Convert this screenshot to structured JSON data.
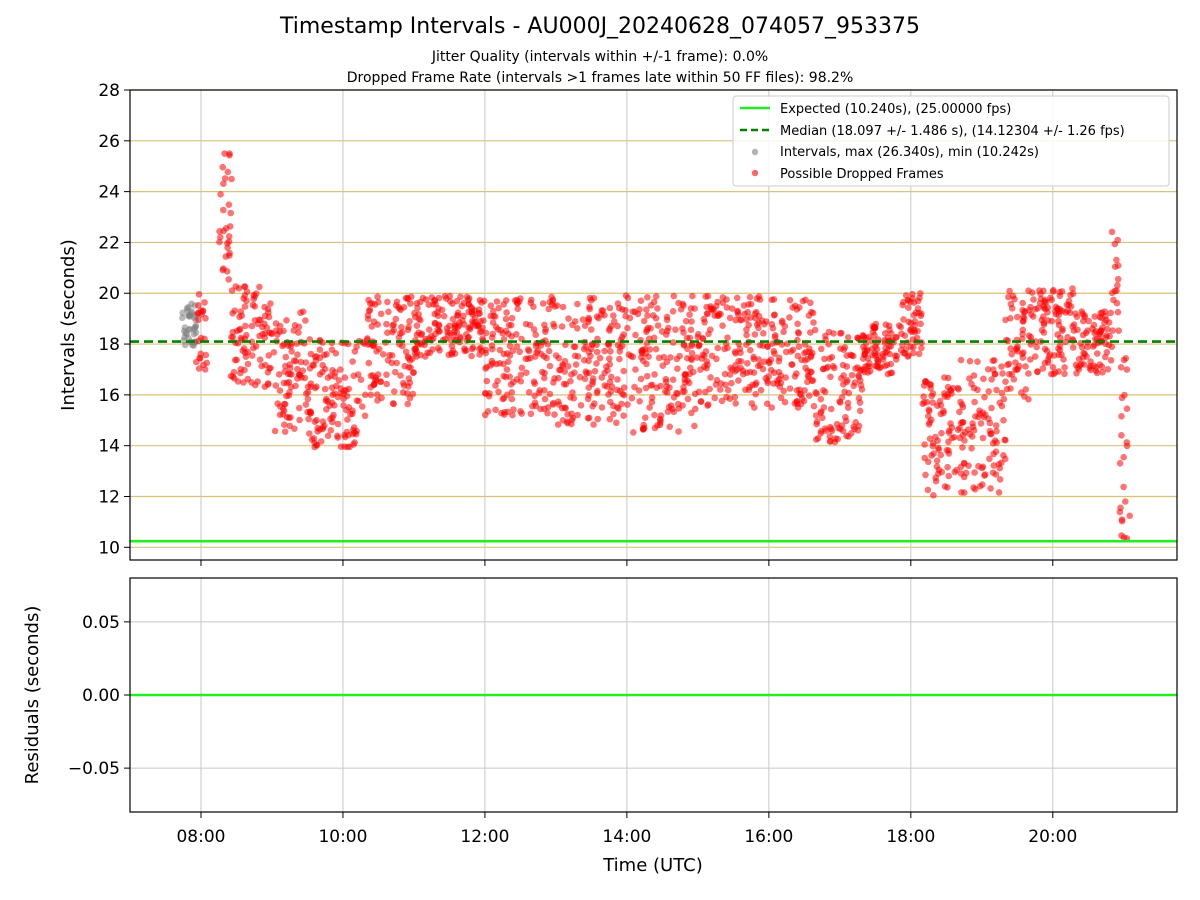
{
  "title": "Timestamp Intervals - AU000J_20240628_074057_953375",
  "subtitle_lines": [
    "Jitter Quality (intervals within +/-1 frame): 0.0%",
    "Dropped Frame Rate (intervals >1 frames late within 50 FF files): 98.2%"
  ],
  "colors": {
    "expected": "#22ee22",
    "median": "#008000",
    "intervals": "#808080",
    "dropped": "#ff0000",
    "hgrid_top": "#d9c27a",
    "grid": "#c8c8c8"
  },
  "chart_data": [
    {
      "type": "scatter",
      "ylabel": "Intervals (seconds)",
      "xlabel": "",
      "xlim": [
        "07:00",
        "21:45"
      ],
      "ylim": [
        9.5,
        28
      ],
      "yticks": [
        10,
        12,
        14,
        16,
        18,
        20,
        22,
        24,
        26,
        28
      ],
      "xticks": [
        "08:00",
        "10:00",
        "12:00",
        "14:00",
        "16:00",
        "18:00",
        "20:00"
      ],
      "legend_position": "top-right",
      "legend": [
        "Expected (10.240s), (25.00000 fps)",
        "Median (18.097 +/- 1.486 s), (14.12304 +/- 1.26 fps)",
        "Intervals, max (26.340s), min (10.242s)",
        "Possible Dropped Frames"
      ],
      "lines": [
        {
          "name": "Expected (10.240s), (25.00000 fps)",
          "y": 10.24,
          "style": "solid",
          "color": "#22ee22"
        },
        {
          "name": "Median (18.097 +/- 1.486 s), (14.12304 +/- 1.26 fps)",
          "y": 18.097,
          "style": "dashed",
          "color": "#008000"
        }
      ],
      "series": [
        {
          "name": "Intervals, max (26.340s), min (10.242s)",
          "color": "#808080",
          "segments": [
            {
              "x_start": "07:41",
              "x_end": "07:56",
              "y_min": 17.9,
              "y_max": 19.6
            }
          ]
        },
        {
          "name": "Possible Dropped Frames",
          "color": "#ff0000",
          "segments": [
            {
              "x_start": "07:56",
              "x_end": "08:05",
              "y_min": 17.0,
              "y_max": 20.0
            },
            {
              "x_start": "08:15",
              "x_end": "08:26",
              "y_min": 20.5,
              "y_max": 26.3
            },
            {
              "x_start": "08:25",
              "x_end": "09:00",
              "y_min": 16.3,
              "y_max": 20.3
            },
            {
              "x_start": "09:00",
              "x_end": "09:30",
              "y_min": 14.5,
              "y_max": 19.3
            },
            {
              "x_start": "09:30",
              "x_end": "10:20",
              "y_min": 13.9,
              "y_max": 18.2
            },
            {
              "x_start": "10:20",
              "x_end": "11:00",
              "y_min": 15.6,
              "y_max": 19.9
            },
            {
              "x_start": "11:00",
              "x_end": "12:00",
              "y_min": 17.5,
              "y_max": 19.9
            },
            {
              "x_start": "12:00",
              "x_end": "13:00",
              "y_min": 15.2,
              "y_max": 19.9
            },
            {
              "x_start": "13:00",
              "x_end": "14:00",
              "y_min": 14.8,
              "y_max": 20.0
            },
            {
              "x_start": "14:00",
              "x_end": "15:00",
              "y_min": 14.5,
              "y_max": 19.9
            },
            {
              "x_start": "15:00",
              "x_end": "16:00",
              "y_min": 15.5,
              "y_max": 19.9
            },
            {
              "x_start": "16:00",
              "x_end": "16:40",
              "y_min": 15.5,
              "y_max": 19.8
            },
            {
              "x_start": "16:40",
              "x_end": "17:20",
              "y_min": 14.1,
              "y_max": 18.5
            },
            {
              "x_start": "17:20",
              "x_end": "17:50",
              "y_min": 16.8,
              "y_max": 18.8
            },
            {
              "x_start": "17:50",
              "x_end": "18:10",
              "y_min": 17.5,
              "y_max": 20.2
            },
            {
              "x_start": "18:10",
              "x_end": "18:40",
              "y_min": 12.0,
              "y_max": 16.7
            },
            {
              "x_start": "18:40",
              "x_end": "19:20",
              "y_min": 12.1,
              "y_max": 17.4
            },
            {
              "x_start": "19:20",
              "x_end": "19:40",
              "y_min": 15.8,
              "y_max": 20.1
            },
            {
              "x_start": "19:40",
              "x_end": "20:20",
              "y_min": 16.8,
              "y_max": 20.2
            },
            {
              "x_start": "20:20",
              "x_end": "20:50",
              "y_min": 16.8,
              "y_max": 19.3
            },
            {
              "x_start": "20:50",
              "x_end": "20:56",
              "y_min": 18.0,
              "y_max": 22.8
            },
            {
              "x_start": "20:56",
              "x_end": "21:05",
              "y_min": 10.2,
              "y_max": 18.1
            }
          ]
        }
      ]
    },
    {
      "type": "line",
      "xlabel": "Time (UTC)",
      "ylabel": "Residuals (seconds)",
      "xlim": [
        "07:00",
        "21:45"
      ],
      "ylim": [
        -0.08,
        0.08
      ],
      "yticks": [
        0.05,
        0.0,
        -0.05
      ],
      "ytick_labels": [
        "0.05",
        "0.00",
        "−0.05"
      ],
      "xticks": [
        "08:00",
        "10:00",
        "12:00",
        "14:00",
        "16:00",
        "18:00",
        "20:00"
      ],
      "lines": [
        {
          "y": 0.0,
          "color": "#22ee22"
        }
      ]
    }
  ]
}
